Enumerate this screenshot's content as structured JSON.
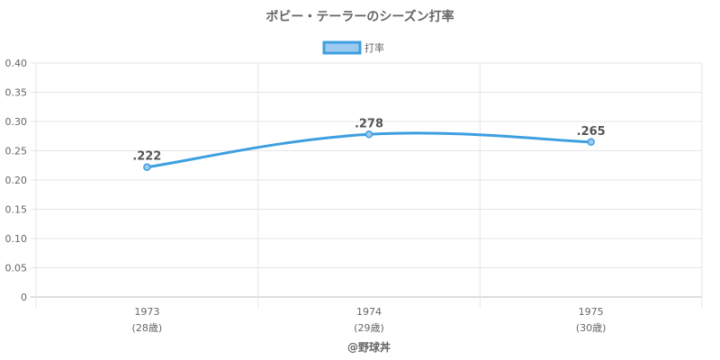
{
  "chart_data": {
    "type": "line",
    "title": "ボビー・テーラーのシーズン打率",
    "legend": {
      "label": "打率",
      "position": "top-center"
    },
    "categories": [
      "1973",
      "1974",
      "1975"
    ],
    "category_sublabels": [
      "(28歳)",
      "(29歳)",
      "(30歳)"
    ],
    "series": [
      {
        "name": "打率",
        "values": [
          0.222,
          0.278,
          0.265
        ],
        "data_labels": [
          ".222",
          ".278",
          ".265"
        ],
        "color": "#3d9fe0",
        "fill_color": "#9fcaf0"
      }
    ],
    "yticks": [
      "0",
      "0.05",
      "0.10",
      "0.15",
      "0.20",
      "0.25",
      "0.30",
      "0.35",
      "0.40"
    ],
    "ylim": [
      0,
      0.4
    ],
    "grid": true,
    "xlabel": "",
    "ylabel": ""
  },
  "footer": {
    "credit": "@野球丼"
  }
}
